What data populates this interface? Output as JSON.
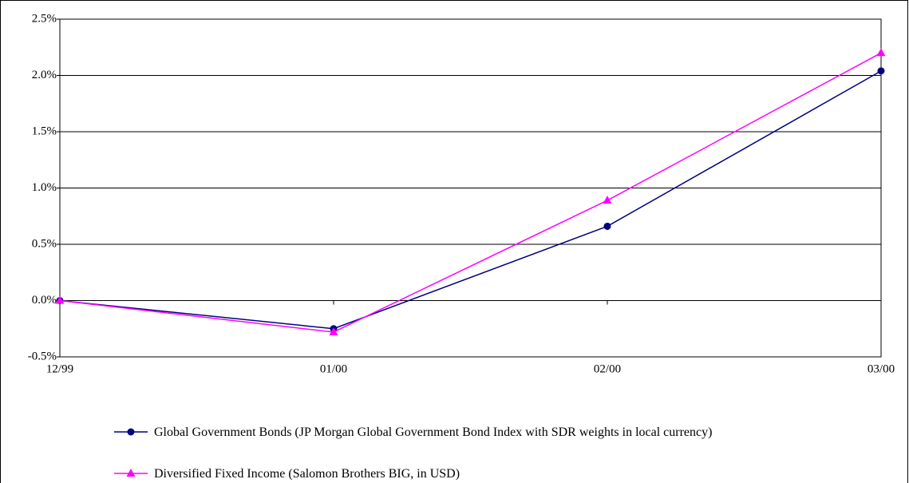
{
  "chart_data": {
    "type": "line",
    "categories": [
      "12/99",
      "01/00",
      "02/00",
      "03/00"
    ],
    "series": [
      {
        "name": "Global Government Bonds (JP Morgan Global Government Bond Index with SDR weights in local currency)",
        "color": "#000080",
        "marker": "circle",
        "values": [
          0,
          -0.25,
          0.66,
          2.04
        ]
      },
      {
        "name": "Diversified Fixed Income (Salomon Brothers BIG, in USD)",
        "color": "#ff00ff",
        "marker": "triangle",
        "values": [
          0,
          -0.28,
          0.89,
          2.2
        ]
      }
    ],
    "ylim": [
      -0.5,
      2.5
    ],
    "yticks": [
      {
        "value": -0.5,
        "label": "-0.5%"
      },
      {
        "value": 0,
        "label": "0.0%"
      },
      {
        "value": 0.5,
        "label": "0.5%"
      },
      {
        "value": 1,
        "label": "1.0%"
      },
      {
        "value": 1.5,
        "label": "1.5%"
      },
      {
        "value": 2,
        "label": "2.0%"
      },
      {
        "value": 2.5,
        "label": "2.5%"
      }
    ],
    "grid": true,
    "legend": "bottom"
  }
}
